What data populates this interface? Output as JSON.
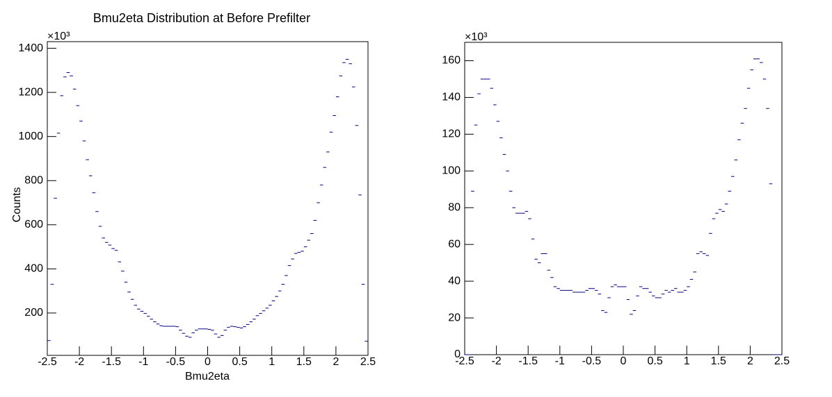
{
  "chart_data": [
    {
      "type": "histogram",
      "title": "Bmu2eta Distribution at Before Prefilter",
      "x_label": "Bmu2eta",
      "y_label": "Counts",
      "multiplier": "×10³",
      "color": "#00007f",
      "bins": [
        -2.5,
        -2.45,
        -2.4,
        -2.35,
        -2.3,
        -2.25,
        -2.2,
        -2.15,
        -2.1,
        -2.05,
        -2,
        -1.95,
        -1.9,
        -1.85,
        -1.8,
        -1.75,
        -1.7,
        -1.65,
        -1.6,
        -1.55,
        -1.5,
        -1.45,
        -1.4,
        -1.35,
        -1.3,
        -1.25,
        -1.2,
        -1.15,
        -1.1,
        -1.05,
        -1,
        -0.95,
        -0.9,
        -0.85,
        -0.8,
        -0.75,
        -0.7,
        -0.65,
        -0.6,
        -0.55,
        -0.5,
        -0.45,
        -0.4,
        -0.35,
        -0.3,
        -0.25,
        -0.2,
        -0.15,
        -0.1,
        -0.05,
        0,
        0.05,
        0.1,
        0.15,
        0.2,
        0.25,
        0.3,
        0.35,
        0.4,
        0.45,
        0.5,
        0.55,
        0.6,
        0.65,
        0.7,
        0.75,
        0.8,
        0.85,
        0.9,
        0.95,
        1,
        1.05,
        1.1,
        1.15,
        1.2,
        1.25,
        1.3,
        1.35,
        1.4,
        1.45,
        1.5,
        1.55,
        1.6,
        1.65,
        1.7,
        1.75,
        1.8,
        1.85,
        1.9,
        1.95,
        2,
        2.05,
        2.1,
        2.15,
        2.2,
        2.25,
        2.3,
        2.35,
        2.4,
        2.45,
        2.5
      ],
      "values": [
        75,
        330,
        720,
        1015,
        1185,
        1270,
        1290,
        1275,
        1215,
        1140,
        1070,
        980,
        895,
        822,
        745,
        660,
        593,
        540,
        520,
        508,
        492,
        484,
        432,
        390,
        340,
        295,
        262,
        235,
        218,
        208,
        198,
        185,
        172,
        160,
        150,
        142,
        140,
        140,
        140,
        140,
        138,
        122,
        108,
        95,
        90,
        110,
        122,
        128,
        128,
        128,
        126,
        122,
        105,
        90,
        98,
        122,
        135,
        140,
        138,
        135,
        132,
        138,
        148,
        160,
        172,
        188,
        198,
        210,
        222,
        235,
        255,
        275,
        300,
        330,
        370,
        415,
        445,
        470,
        475,
        480,
        500,
        530,
        560,
        620,
        700,
        780,
        860,
        930,
        1020,
        1095,
        1180,
        1275,
        1335,
        1350,
        1330,
        1225,
        1050,
        735,
        330,
        72
      ],
      "xlim": [
        -2.5,
        2.5
      ],
      "xticks": [
        -2.5,
        -2,
        -1.5,
        -1,
        -0.5,
        0,
        0.5,
        1,
        1.5,
        2,
        2.5
      ],
      "ylim": [
        8,
        1430
      ],
      "yticks": [
        200,
        400,
        600,
        800,
        1000,
        1200,
        1400
      ]
    },
    {
      "type": "histogram",
      "multiplier": "×10³",
      "color": "#00007f",
      "bins": [
        -2.5,
        -2.45,
        -2.4,
        -2.35,
        -2.3,
        -2.25,
        -2.2,
        -2.15,
        -2.1,
        -2.05,
        -2,
        -1.95,
        -1.9,
        -1.85,
        -1.8,
        -1.75,
        -1.7,
        -1.65,
        -1.6,
        -1.55,
        -1.5,
        -1.45,
        -1.4,
        -1.35,
        -1.3,
        -1.25,
        -1.2,
        -1.15,
        -1.1,
        -1.05,
        -1,
        -0.95,
        -0.9,
        -0.85,
        -0.8,
        -0.75,
        -0.7,
        -0.65,
        -0.6,
        -0.55,
        -0.5,
        -0.45,
        -0.4,
        -0.35,
        -0.3,
        -0.25,
        -0.2,
        -0.15,
        -0.1,
        -0.05,
        0,
        0.05,
        0.1,
        0.15,
        0.2,
        0.25,
        0.3,
        0.35,
        0.4,
        0.45,
        0.5,
        0.55,
        0.6,
        0.65,
        0.7,
        0.75,
        0.8,
        0.85,
        0.9,
        0.95,
        1,
        1.05,
        1.1,
        1.15,
        1.2,
        1.25,
        1.3,
        1.35,
        1.4,
        1.45,
        1.5,
        1.55,
        1.6,
        1.65,
        1.7,
        1.75,
        1.8,
        1.85,
        1.9,
        1.95,
        2,
        2.05,
        2.1,
        2.15,
        2.2,
        2.25,
        2.3,
        2.35,
        2.4,
        2.45,
        2.5
      ],
      "values": [
        0,
        0,
        89,
        125,
        142,
        150,
        150,
        150,
        145,
        136,
        127,
        118,
        109,
        100,
        89,
        80,
        77,
        77,
        77,
        78,
        74,
        63,
        52,
        50,
        55,
        55,
        46,
        42,
        37,
        36,
        35,
        35,
        35,
        35,
        34,
        34,
        34,
        34,
        35,
        36,
        36,
        35,
        33,
        24,
        23,
        31,
        37,
        38,
        37,
        37,
        37,
        30,
        22,
        24,
        32,
        37,
        36,
        36,
        34,
        32,
        31,
        31,
        33,
        35,
        34,
        35,
        36,
        34,
        34,
        35,
        37,
        41,
        45,
        55,
        56,
        55,
        54,
        66,
        74,
        77,
        79,
        78,
        82,
        89,
        97,
        106,
        117,
        126,
        134,
        145,
        155,
        161,
        161,
        159,
        150,
        134,
        93,
        0,
        0,
        0
      ],
      "xlim": [
        -2.5,
        2.5
      ],
      "xticks": [
        -2.5,
        -2,
        -1.5,
        -1,
        -0.5,
        0,
        0.5,
        1,
        1.5,
        2,
        2.5
      ],
      "ylim": [
        0,
        170
      ],
      "yticks": [
        0,
        20,
        40,
        60,
        80,
        100,
        120,
        140,
        160
      ]
    }
  ]
}
